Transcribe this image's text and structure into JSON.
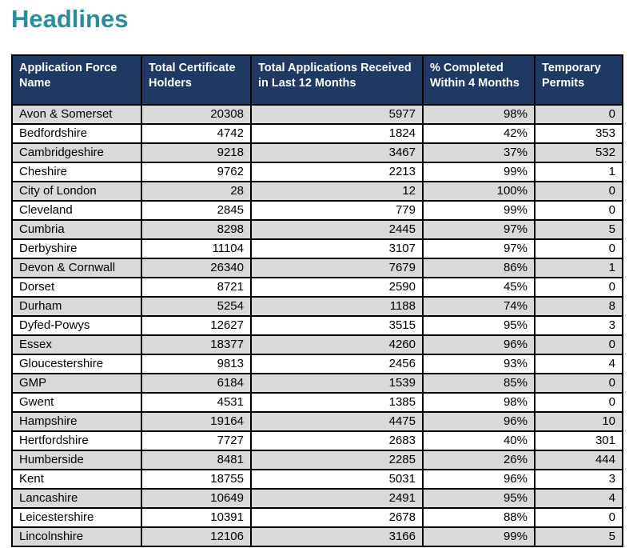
{
  "page": {
    "title": "Headlines"
  },
  "colors": {
    "title": "#2C8C9E",
    "header_bg": "#1F3864",
    "header_text": "#FFFFFF",
    "row_alt_bg": "#D9D9D9",
    "row_bg": "#FFFFFF",
    "border": "#000000"
  },
  "table": {
    "columns": [
      "Application Force Name",
      "Total Certificate Holders",
      "Total Applications Received in Last 12 Months",
      "% Completed Within 4 Months",
      "Temporary Permits"
    ],
    "rows": [
      [
        "Avon & Somerset",
        "20308",
        "5977",
        "98%",
        "0"
      ],
      [
        "Bedfordshire",
        "4742",
        "1824",
        "42%",
        "353"
      ],
      [
        "Cambridgeshire",
        "9218",
        "3467",
        "37%",
        "532"
      ],
      [
        "Cheshire",
        "9762",
        "2213",
        "99%",
        "1"
      ],
      [
        "City of London",
        "28",
        "12",
        "100%",
        "0"
      ],
      [
        "Cleveland",
        "2845",
        "779",
        "99%",
        "0"
      ],
      [
        "Cumbria",
        "8298",
        "2445",
        "97%",
        "5"
      ],
      [
        "Derbyshire",
        "11104",
        "3107",
        "97%",
        "0"
      ],
      [
        "Devon & Cornwall",
        "26340",
        "7679",
        "86%",
        "1"
      ],
      [
        "Dorset",
        "8721",
        "2590",
        "45%",
        "0"
      ],
      [
        "Durham",
        "5254",
        "1188",
        "74%",
        "8"
      ],
      [
        "Dyfed-Powys",
        "12627",
        "3515",
        "95%",
        "3"
      ],
      [
        "Essex",
        "18377",
        "4260",
        "96%",
        "0"
      ],
      [
        "Gloucestershire",
        "9813",
        "2456",
        "93%",
        "4"
      ],
      [
        "GMP",
        "6184",
        "1539",
        "85%",
        "0"
      ],
      [
        "Gwent",
        "4531",
        "1385",
        "98%",
        "0"
      ],
      [
        "Hampshire",
        "19164",
        "4475",
        "96%",
        "10"
      ],
      [
        "Hertfordshire",
        "7727",
        "2683",
        "40%",
        "301"
      ],
      [
        "Humberside",
        "8481",
        "2285",
        "26%",
        "444"
      ],
      [
        "Kent",
        "18755",
        "5031",
        "96%",
        "3"
      ],
      [
        "Lancashire",
        "10649",
        "2491",
        "95%",
        "4"
      ],
      [
        "Leicestershire",
        "10391",
        "2678",
        "88%",
        "0"
      ],
      [
        "Lincolnshire",
        "12106",
        "3166",
        "99%",
        "5"
      ]
    ]
  }
}
